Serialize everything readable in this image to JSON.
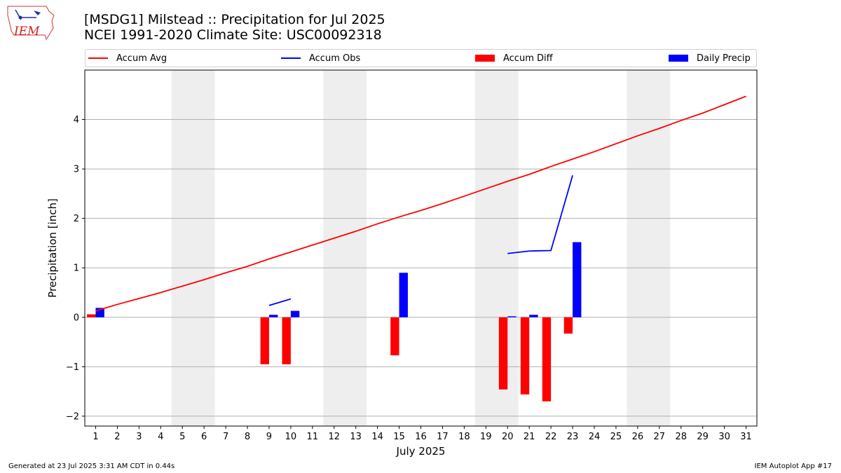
{
  "header": {
    "line1": "[MSDG1] Milstead :: Precipitation for Jul 2025",
    "line2": "NCEI 1991-2020 Climate Site: USC00092318"
  },
  "logo": {
    "text": "IEM"
  },
  "legend": {
    "accum_avg": "Accum Avg",
    "accum_obs": "Accum Obs",
    "accum_diff": "Accum Diff",
    "daily_precip": "Daily Precip"
  },
  "footer": {
    "left": "Generated at 23 Jul 2025 3:31 AM CDT in 0.44s",
    "right": "IEM Autoplot App #17"
  },
  "colors": {
    "accum_avg": "#ff0000",
    "accum_obs": "#0000ff",
    "accum_diff": "#ff0000",
    "daily_precip": "#0000ff",
    "weekend_shade": "#eeeeee",
    "grid": "#b0b0b0"
  },
  "chart_data": {
    "type": "bar",
    "xlabel": "July 2025",
    "ylabel": "Precipitation [inch]",
    "xlim": [
      0.5,
      31.5
    ],
    "ylim": [
      -2.2,
      5.0
    ],
    "yticks": [
      -2,
      -1,
      0,
      1,
      2,
      3,
      4
    ],
    "ytick_labels": [
      "−2",
      "−1",
      "0",
      "1",
      "2",
      "3",
      "4"
    ],
    "xticks": [
      1,
      2,
      3,
      4,
      5,
      6,
      7,
      8,
      9,
      10,
      11,
      12,
      13,
      14,
      15,
      16,
      17,
      18,
      19,
      20,
      21,
      22,
      23,
      24,
      25,
      26,
      27,
      28,
      29,
      30,
      31
    ],
    "grid": "horizontal",
    "legend_position": "top",
    "weekend_spans": [
      [
        4.5,
        6.5
      ],
      [
        11.5,
        13.5
      ],
      [
        18.5,
        20.5
      ],
      [
        25.5,
        27.5
      ]
    ],
    "series": [
      {
        "name": "Accum Avg",
        "kind": "line",
        "x": [
          1,
          2,
          3,
          4,
          5,
          6,
          7,
          8,
          9,
          10,
          11,
          12,
          13,
          14,
          15,
          16,
          17,
          18,
          19,
          20,
          21,
          22,
          23,
          24,
          25,
          26,
          27,
          28,
          29,
          30,
          31
        ],
        "values": [
          0.13,
          0.26,
          0.38,
          0.5,
          0.63,
          0.76,
          0.9,
          1.03,
          1.18,
          1.32,
          1.46,
          1.6,
          1.74,
          1.89,
          2.03,
          2.16,
          2.3,
          2.45,
          2.6,
          2.75,
          2.89,
          3.05,
          3.2,
          3.35,
          3.51,
          3.67,
          3.82,
          3.98,
          4.13,
          4.3,
          4.47
        ]
      },
      {
        "name": "Accum Obs",
        "kind": "line",
        "segments": [
          {
            "x": [
              9,
              10
            ],
            "values": [
              0.24,
              0.37
            ]
          },
          {
            "x": [
              20,
              21,
              22,
              23
            ],
            "values": [
              1.29,
              1.34,
              1.35,
              2.87
            ]
          }
        ]
      },
      {
        "name": "Accum Diff",
        "kind": "bar",
        "x": [
          1,
          9,
          10,
          15,
          20,
          21,
          22,
          23
        ],
        "values": [
          0.06,
          -0.95,
          -0.95,
          -0.77,
          -1.46,
          -1.56,
          -1.7,
          -0.33
        ]
      },
      {
        "name": "Daily Precip",
        "kind": "bar",
        "x": [
          1,
          9,
          10,
          15,
          20,
          21,
          23
        ],
        "values": [
          0.19,
          0.05,
          0.13,
          0.9,
          0.02,
          0.05,
          1.52
        ]
      }
    ]
  }
}
